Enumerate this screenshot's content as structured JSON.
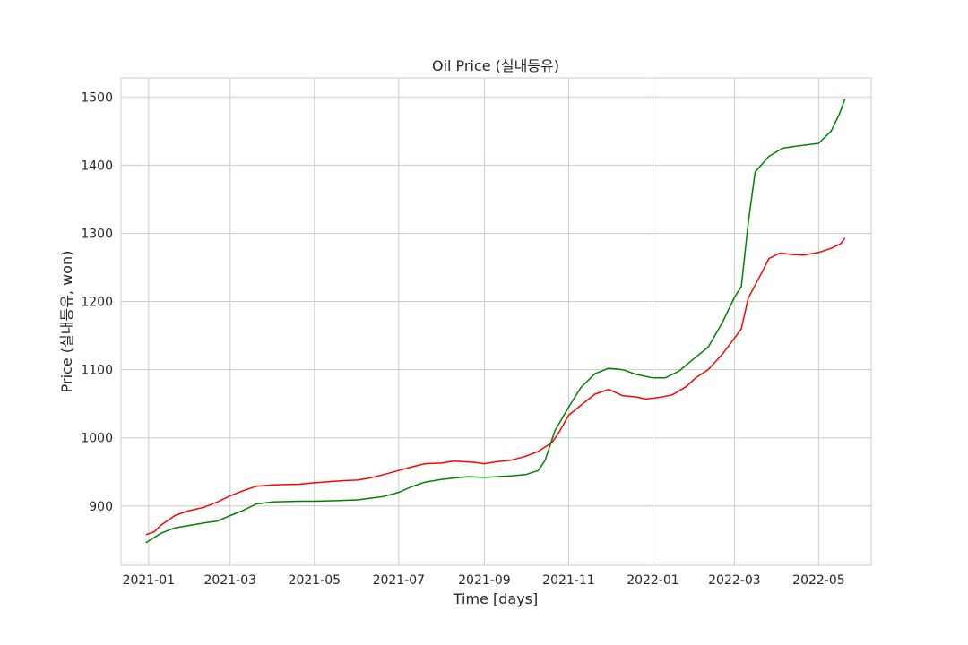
{
  "chart_data": {
    "type": "line",
    "title": "Oil Price (실내등유)",
    "xlabel": "Time [days]",
    "ylabel": "Price (실내등유, won)",
    "grid": true,
    "legend": "none",
    "xlim": [
      "2020-12-12",
      "2022-06-08"
    ],
    "ylim": [
      813,
      1528
    ],
    "x_ticks": [
      "2021-01",
      "2021-03",
      "2021-05",
      "2021-07",
      "2021-09",
      "2021-11",
      "2022-01",
      "2022-03",
      "2022-05"
    ],
    "y_ticks": [
      900,
      1000,
      1100,
      1200,
      1300,
      1400,
      1500
    ],
    "series": [
      {
        "color": "#ff0000",
        "points": [
          [
            "2020-12-30",
            858
          ],
          [
            "2021-01-05",
            862
          ],
          [
            "2021-01-10",
            872
          ],
          [
            "2021-01-20",
            886
          ],
          [
            "2021-01-30",
            893
          ],
          [
            "2021-02-10",
            898
          ],
          [
            "2021-02-20",
            906
          ],
          [
            "2021-03-01",
            915
          ],
          [
            "2021-03-10",
            922
          ],
          [
            "2021-03-20",
            929
          ],
          [
            "2021-04-01",
            931
          ],
          [
            "2021-04-20",
            932
          ],
          [
            "2021-05-01",
            934
          ],
          [
            "2021-05-20",
            937
          ],
          [
            "2021-06-01",
            938
          ],
          [
            "2021-06-10",
            941
          ],
          [
            "2021-06-20",
            946
          ],
          [
            "2021-07-01",
            952
          ],
          [
            "2021-07-10",
            957
          ],
          [
            "2021-07-20",
            962
          ],
          [
            "2021-08-01",
            963
          ],
          [
            "2021-08-10",
            966
          ],
          [
            "2021-08-25",
            964
          ],
          [
            "2021-09-01",
            962
          ],
          [
            "2021-09-10",
            965
          ],
          [
            "2021-09-20",
            967
          ],
          [
            "2021-10-01",
            973
          ],
          [
            "2021-10-10",
            980
          ],
          [
            "2021-10-20",
            993
          ],
          [
            "2021-10-25",
            1008
          ],
          [
            "2021-11-01",
            1033
          ],
          [
            "2021-11-10",
            1048
          ],
          [
            "2021-11-20",
            1064
          ],
          [
            "2021-11-30",
            1071
          ],
          [
            "2021-12-10",
            1062
          ],
          [
            "2021-12-20",
            1060
          ],
          [
            "2021-12-27",
            1057
          ],
          [
            "2022-01-05",
            1059
          ],
          [
            "2022-01-15",
            1063
          ],
          [
            "2022-01-25",
            1075
          ],
          [
            "2022-02-01",
            1088
          ],
          [
            "2022-02-10",
            1100
          ],
          [
            "2022-02-20",
            1122
          ],
          [
            "2022-03-01",
            1146
          ],
          [
            "2022-03-06",
            1160
          ],
          [
            "2022-03-11",
            1205
          ],
          [
            "2022-03-21",
            1243
          ],
          [
            "2022-03-26",
            1263
          ],
          [
            "2022-04-03",
            1271
          ],
          [
            "2022-04-12",
            1269
          ],
          [
            "2022-04-20",
            1268
          ],
          [
            "2022-05-01",
            1272
          ],
          [
            "2022-05-10",
            1278
          ],
          [
            "2022-05-17",
            1285
          ],
          [
            "2022-05-20",
            1293
          ]
        ]
      },
      {
        "color": "#008000",
        "points": [
          [
            "2020-12-30",
            846
          ],
          [
            "2021-01-10",
            860
          ],
          [
            "2021-01-20",
            868
          ],
          [
            "2021-02-01",
            872
          ],
          [
            "2021-02-10",
            875
          ],
          [
            "2021-02-20",
            878
          ],
          [
            "2021-03-01",
            886
          ],
          [
            "2021-03-10",
            893
          ],
          [
            "2021-03-20",
            903
          ],
          [
            "2021-04-01",
            906
          ],
          [
            "2021-04-20",
            907
          ],
          [
            "2021-05-01",
            907
          ],
          [
            "2021-05-20",
            908
          ],
          [
            "2021-06-01",
            909
          ],
          [
            "2021-06-20",
            914
          ],
          [
            "2021-07-01",
            920
          ],
          [
            "2021-07-10",
            928
          ],
          [
            "2021-07-20",
            935
          ],
          [
            "2021-08-01",
            939
          ],
          [
            "2021-08-10",
            941
          ],
          [
            "2021-08-20",
            943
          ],
          [
            "2021-09-01",
            942
          ],
          [
            "2021-09-10",
            943
          ],
          [
            "2021-09-20",
            944
          ],
          [
            "2021-10-01",
            946
          ],
          [
            "2021-10-10",
            952
          ],
          [
            "2021-10-15",
            967
          ],
          [
            "2021-10-22",
            1010
          ],
          [
            "2021-11-01",
            1045
          ],
          [
            "2021-11-10",
            1074
          ],
          [
            "2021-11-20",
            1094
          ],
          [
            "2021-11-30",
            1102
          ],
          [
            "2021-12-10",
            1100
          ],
          [
            "2021-12-20",
            1093
          ],
          [
            "2022-01-01",
            1088
          ],
          [
            "2022-01-10",
            1088
          ],
          [
            "2022-01-20",
            1098
          ],
          [
            "2022-01-30",
            1115
          ],
          [
            "2022-02-10",
            1133
          ],
          [
            "2022-02-20",
            1168
          ],
          [
            "2022-03-01",
            1206
          ],
          [
            "2022-03-06",
            1222
          ],
          [
            "2022-03-11",
            1315
          ],
          [
            "2022-03-16",
            1390
          ],
          [
            "2022-03-26",
            1413
          ],
          [
            "2022-04-05",
            1425
          ],
          [
            "2022-04-15",
            1428
          ],
          [
            "2022-05-01",
            1432
          ],
          [
            "2022-05-10",
            1450
          ],
          [
            "2022-05-16",
            1475
          ],
          [
            "2022-05-20",
            1497
          ]
        ]
      }
    ]
  }
}
